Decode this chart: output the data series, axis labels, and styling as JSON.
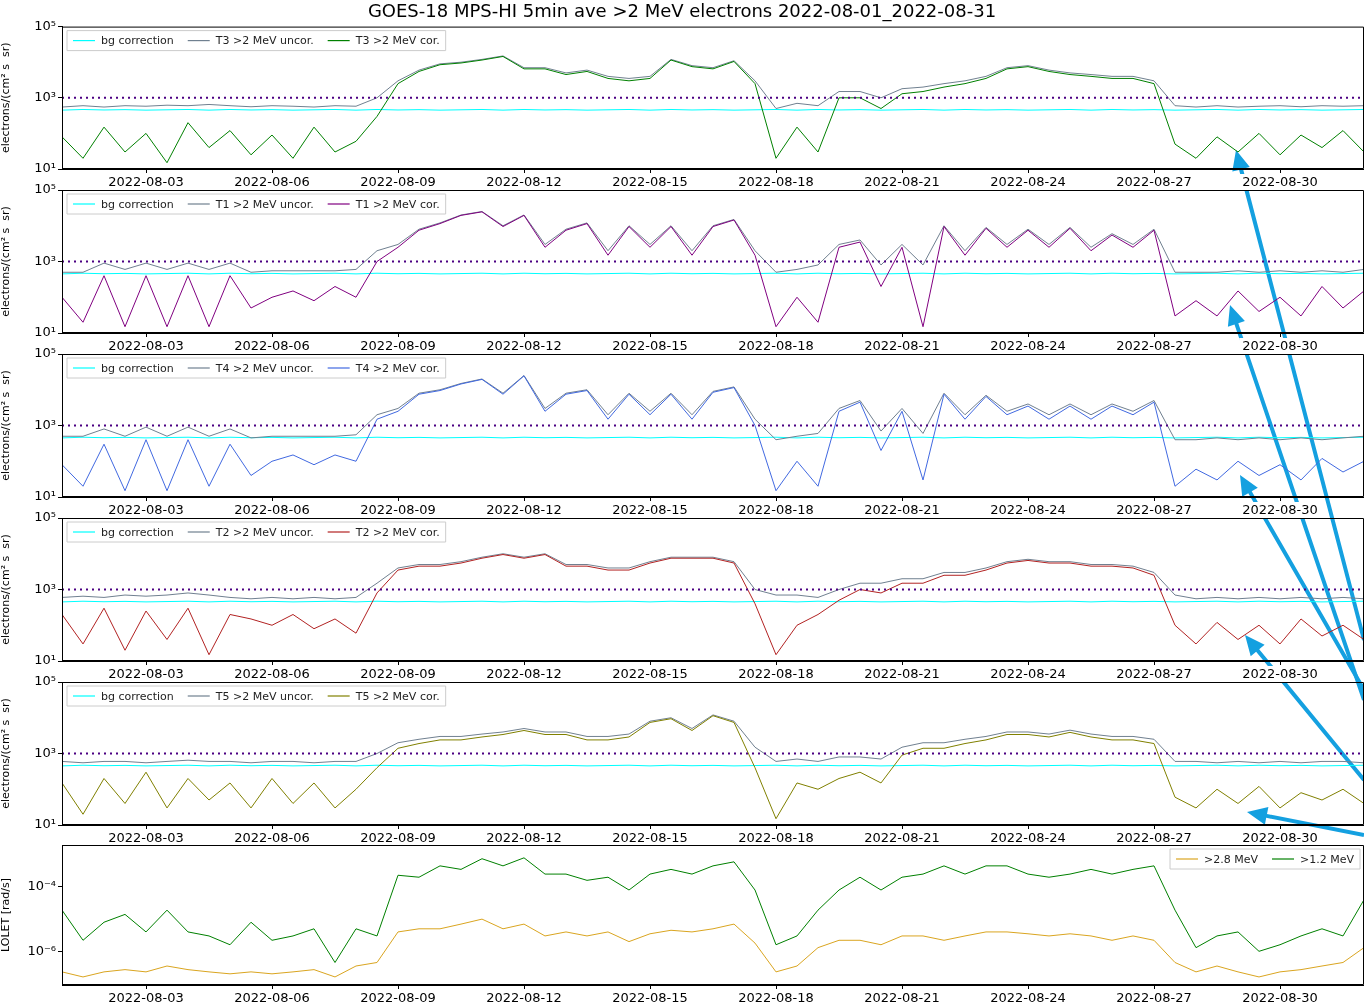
{
  "chart_data": [
    {
      "type": "line",
      "title": "GOES-18 MPS-HI 5min ave >2 MeV electrons 2022-08-01_2022-08-31",
      "ylabel": "electrons/(cm² s  sr)",
      "log": true,
      "legend": "top left",
      "x": [
        "2022-08-01T00:00",
        "2022-08-01T12:00",
        "2022-08-02T00:00",
        "2022-08-02T12:00",
        "2022-08-03T00:00",
        "2022-08-03T12:00",
        "2022-08-04T00:00",
        "2022-08-04T12:00",
        "2022-08-05T00:00",
        "2022-08-05T12:00",
        "2022-08-06T00:00",
        "2022-08-06T12:00",
        "2022-08-07T00:00",
        "2022-08-07T12:00",
        "2022-08-08T00:00",
        "2022-08-08T12:00",
        "2022-08-09T00:00",
        "2022-08-09T12:00",
        "2022-08-10T00:00",
        "2022-08-10T12:00",
        "2022-08-11T00:00",
        "2022-08-11T12:00",
        "2022-08-12T00:00",
        "2022-08-12T12:00",
        "2022-08-13T00:00",
        "2022-08-13T12:00",
        "2022-08-14T00:00",
        "2022-08-14T12:00",
        "2022-08-15T00:00",
        "2022-08-15T12:00",
        "2022-08-16T00:00",
        "2022-08-16T12:00",
        "2022-08-17T00:00",
        "2022-08-17T12:00",
        "2022-08-18T00:00",
        "2022-08-18T12:00",
        "2022-08-19T00:00",
        "2022-08-19T12:00",
        "2022-08-20T00:00",
        "2022-08-20T12:00",
        "2022-08-21T00:00",
        "2022-08-21T12:00",
        "2022-08-22T00:00",
        "2022-08-22T12:00",
        "2022-08-23T00:00",
        "2022-08-23T12:00",
        "2022-08-24T00:00",
        "2022-08-24T12:00",
        "2022-08-25T00:00",
        "2022-08-25T12:00",
        "2022-08-26T00:00",
        "2022-08-26T12:00",
        "2022-08-27T00:00",
        "2022-08-27T12:00",
        "2022-08-28T00:00",
        "2022-08-28T12:00",
        "2022-08-29T00:00",
        "2022-08-29T12:00",
        "2022-08-30T00:00",
        "2022-08-30T12:00",
        "2022-08-31T00:00",
        "2022-08-31T12:00",
        "2022-09-01T00:00"
      ],
      "xlim": [
        "2022-08-01",
        "2022-09-01"
      ],
      "xticks": [
        "2022-08-03",
        "2022-08-06",
        "2022-08-09",
        "2022-08-12",
        "2022-08-15",
        "2022-08-18",
        "2022-08-21",
        "2022-08-24",
        "2022-08-27",
        "2022-08-30"
      ],
      "ylim": [
        10,
        100000
      ],
      "yticks": [
        {
          "value": 10,
          "label": "10¹"
        },
        {
          "value": 1000,
          "label": "10³"
        },
        {
          "value": 100000,
          "label": "10⁵"
        }
      ],
      "ref_lines": [
        {
          "axis": "y",
          "value": 1000,
          "color": "#4b0082",
          "line_style": "dotted"
        }
      ],
      "series": [
        {
          "name": "bg correction",
          "color": "#00ffff",
          "values": [
            450,
            470,
            455,
            465,
            450,
            460,
            470,
            450,
            470,
            455,
            465,
            450,
            460,
            470,
            450,
            470,
            455,
            465,
            450,
            460,
            470,
            450,
            470,
            455,
            465,
            450,
            460,
            470,
            450,
            470,
            455,
            465,
            450,
            460,
            470,
            450,
            470,
            455,
            465,
            450,
            460,
            470,
            450,
            470,
            455,
            465,
            450,
            460,
            470,
            450,
            470,
            455,
            465,
            450,
            460,
            470,
            450,
            470,
            455,
            465,
            450,
            460,
            470
          ]
        },
        {
          "name": "T3 >2 MeV uncor.",
          "color": "#708090",
          "values": [
            550,
            600,
            550,
            600,
            580,
            620,
            600,
            650,
            600,
            560,
            600,
            580,
            550,
            600,
            580,
            1000,
            3000,
            6000,
            9000,
            10000,
            12000,
            15000,
            7000,
            7000,
            5000,
            6000,
            4000,
            3500,
            4000,
            12000,
            8000,
            7000,
            11000,
            3000,
            500,
            700,
            600,
            1500,
            1500,
            1000,
            1800,
            2000,
            2500,
            3000,
            4000,
            7000,
            8000,
            6000,
            5000,
            4500,
            4000,
            4000,
            3000,
            600,
            550,
            600,
            550,
            580,
            600,
            560,
            600,
            580,
            600
          ]
        },
        {
          "name": "T3 >2 MeV cor.",
          "color": "#008000",
          "values": [
            80,
            20,
            150,
            30,
            100,
            15,
            200,
            40,
            120,
            25,
            90,
            20,
            150,
            30,
            60,
            300,
            2500,
            5500,
            8500,
            9500,
            11500,
            14500,
            6500,
            6500,
            4500,
            5500,
            3500,
            3000,
            3500,
            11500,
            7500,
            6500,
            10500,
            2500,
            20,
            150,
            30,
            1000,
            1000,
            500,
            1300,
            1500,
            2000,
            2500,
            3500,
            6500,
            7500,
            5500,
            4500,
            4000,
            3500,
            3500,
            2500,
            50,
            20,
            80,
            30,
            100,
            25,
            90,
            40,
            120,
            30
          ]
        }
      ]
    },
    {
      "type": "line",
      "ylabel": "electrons/(cm² s  sr)",
      "log": true,
      "legend": "top left",
      "x": [
        "2022-08-01T00:00",
        "2022-08-01T12:00",
        "2022-08-02T00:00",
        "2022-08-02T12:00",
        "2022-08-03T00:00",
        "2022-08-03T12:00",
        "2022-08-04T00:00",
        "2022-08-04T12:00",
        "2022-08-05T00:00",
        "2022-08-05T12:00",
        "2022-08-06T00:00",
        "2022-08-06T12:00",
        "2022-08-07T00:00",
        "2022-08-07T12:00",
        "2022-08-08T00:00",
        "2022-08-08T12:00",
        "2022-08-09T00:00",
        "2022-08-09T12:00",
        "2022-08-10T00:00",
        "2022-08-10T12:00",
        "2022-08-11T00:00",
        "2022-08-11T12:00",
        "2022-08-12T00:00",
        "2022-08-12T12:00",
        "2022-08-13T00:00",
        "2022-08-13T12:00",
        "2022-08-14T00:00",
        "2022-08-14T12:00",
        "2022-08-15T00:00",
        "2022-08-15T12:00",
        "2022-08-16T00:00",
        "2022-08-16T12:00",
        "2022-08-17T00:00",
        "2022-08-17T12:00",
        "2022-08-18T00:00",
        "2022-08-18T12:00",
        "2022-08-19T00:00",
        "2022-08-19T12:00",
        "2022-08-20T00:00",
        "2022-08-20T12:00",
        "2022-08-21T00:00",
        "2022-08-21T12:00",
        "2022-08-22T00:00",
        "2022-08-22T12:00",
        "2022-08-23T00:00",
        "2022-08-23T12:00",
        "2022-08-24T00:00",
        "2022-08-24T12:00",
        "2022-08-25T00:00",
        "2022-08-25T12:00",
        "2022-08-26T00:00",
        "2022-08-26T12:00",
        "2022-08-27T00:00",
        "2022-08-27T12:00",
        "2022-08-28T00:00",
        "2022-08-28T12:00",
        "2022-08-29T00:00",
        "2022-08-29T12:00",
        "2022-08-30T00:00",
        "2022-08-30T12:00",
        "2022-08-31T00:00",
        "2022-08-31T12:00",
        "2022-09-01T00:00"
      ],
      "xlim": [
        "2022-08-01",
        "2022-09-01"
      ],
      "xticks": [
        "2022-08-03",
        "2022-08-06",
        "2022-08-09",
        "2022-08-12",
        "2022-08-15",
        "2022-08-18",
        "2022-08-21",
        "2022-08-24",
        "2022-08-27",
        "2022-08-30"
      ],
      "ylim": [
        10,
        100000
      ],
      "yticks": [
        {
          "value": 10,
          "label": "10¹"
        },
        {
          "value": 1000,
          "label": "10³"
        },
        {
          "value": 100000,
          "label": "10⁵"
        }
      ],
      "ref_lines": [
        {
          "axis": "y",
          "value": 1000,
          "color": "#4b0082",
          "line_style": "dotted"
        }
      ],
      "series": [
        {
          "name": "bg correction",
          "color": "#00ffff",
          "values": [
            450,
            470,
            455,
            465,
            450,
            460,
            470,
            450,
            470,
            455,
            465,
            450,
            460,
            470,
            450,
            470,
            455,
            465,
            450,
            460,
            470,
            450,
            470,
            455,
            465,
            450,
            460,
            470,
            450,
            470,
            455,
            465,
            450,
            460,
            470,
            450,
            470,
            455,
            465,
            450,
            460,
            470,
            450,
            470,
            455,
            465,
            450,
            460,
            470,
            450,
            470,
            455,
            465,
            450,
            460,
            470,
            450,
            470,
            455,
            465,
            450,
            460,
            470
          ]
        },
        {
          "name": "T1 >2 MeV uncor.",
          "color": "#708090",
          "values": [
            500,
            500,
            900,
            600,
            900,
            600,
            900,
            600,
            900,
            500,
            550,
            550,
            550,
            550,
            600,
            2000,
            3000,
            8000,
            12000,
            20000,
            25000,
            10000,
            20000,
            3000,
            8000,
            12000,
            2000,
            10000,
            3000,
            10000,
            2000,
            10000,
            15000,
            2000,
            500,
            600,
            800,
            3000,
            4000,
            800,
            3000,
            800,
            10000,
            2000,
            9000,
            3000,
            8000,
            3000,
            9000,
            2500,
            6000,
            3000,
            8000,
            500,
            500,
            500,
            550,
            500,
            550,
            500,
            550,
            500,
            600
          ]
        },
        {
          "name": "T1 >2 MeV cor.",
          "color": "#800080",
          "values": [
            100,
            20,
            400,
            15,
            400,
            15,
            400,
            15,
            400,
            50,
            100,
            150,
            80,
            200,
            100,
            1000,
            2500,
            7500,
            11500,
            19500,
            24500,
            9500,
            19500,
            2500,
            7500,
            11500,
            1500,
            9500,
            2500,
            9500,
            1500,
            9500,
            14500,
            1500,
            15,
            100,
            20,
            2500,
            3500,
            200,
            2500,
            15,
            9500,
            1500,
            8500,
            2500,
            7500,
            2500,
            8500,
            2000,
            5500,
            2500,
            7500,
            30,
            80,
            30,
            150,
            40,
            100,
            30,
            200,
            50,
            150
          ]
        }
      ]
    },
    {
      "type": "line",
      "ylabel": "electrons/(cm² s  sr)",
      "log": true,
      "legend": "top left",
      "x": [
        "2022-08-01T00:00",
        "2022-08-01T12:00",
        "2022-08-02T00:00",
        "2022-08-02T12:00",
        "2022-08-03T00:00",
        "2022-08-03T12:00",
        "2022-08-04T00:00",
        "2022-08-04T12:00",
        "2022-08-05T00:00",
        "2022-08-05T12:00",
        "2022-08-06T00:00",
        "2022-08-06T12:00",
        "2022-08-07T00:00",
        "2022-08-07T12:00",
        "2022-08-08T00:00",
        "2022-08-08T12:00",
        "2022-08-09T00:00",
        "2022-08-09T12:00",
        "2022-08-10T00:00",
        "2022-08-10T12:00",
        "2022-08-11T00:00",
        "2022-08-11T12:00",
        "2022-08-12T00:00",
        "2022-08-12T12:00",
        "2022-08-13T00:00",
        "2022-08-13T12:00",
        "2022-08-14T00:00",
        "2022-08-14T12:00",
        "2022-08-15T00:00",
        "2022-08-15T12:00",
        "2022-08-16T00:00",
        "2022-08-16T12:00",
        "2022-08-17T00:00",
        "2022-08-17T12:00",
        "2022-08-18T00:00",
        "2022-08-18T12:00",
        "2022-08-19T00:00",
        "2022-08-19T12:00",
        "2022-08-20T00:00",
        "2022-08-20T12:00",
        "2022-08-21T00:00",
        "2022-08-21T12:00",
        "2022-08-22T00:00",
        "2022-08-22T12:00",
        "2022-08-23T00:00",
        "2022-08-23T12:00",
        "2022-08-24T00:00",
        "2022-08-24T12:00",
        "2022-08-25T00:00",
        "2022-08-25T12:00",
        "2022-08-26T00:00",
        "2022-08-26T12:00",
        "2022-08-27T00:00",
        "2022-08-27T12:00",
        "2022-08-28T00:00",
        "2022-08-28T12:00",
        "2022-08-29T00:00",
        "2022-08-29T12:00",
        "2022-08-30T00:00",
        "2022-08-30T12:00",
        "2022-08-31T00:00",
        "2022-08-31T12:00",
        "2022-09-01T00:00"
      ],
      "xlim": [
        "2022-08-01",
        "2022-09-01"
      ],
      "xticks": [
        "2022-08-03",
        "2022-08-06",
        "2022-08-09",
        "2022-08-12",
        "2022-08-15",
        "2022-08-18",
        "2022-08-21",
        "2022-08-24",
        "2022-08-27",
        "2022-08-30"
      ],
      "ylim": [
        10,
        100000
      ],
      "yticks": [
        {
          "value": 10,
          "label": "10¹"
        },
        {
          "value": 1000,
          "label": "10³"
        },
        {
          "value": 100000,
          "label": "10⁵"
        }
      ],
      "ref_lines": [
        {
          "axis": "y",
          "value": 1000,
          "color": "#4b0082",
          "line_style": "dotted"
        }
      ],
      "series": [
        {
          "name": "bg correction",
          "color": "#00ffff",
          "values": [
            450,
            470,
            455,
            465,
            450,
            460,
            470,
            450,
            470,
            455,
            465,
            450,
            460,
            470,
            450,
            470,
            455,
            465,
            450,
            460,
            470,
            450,
            470,
            455,
            465,
            450,
            460,
            470,
            450,
            470,
            455,
            465,
            450,
            460,
            470,
            450,
            470,
            455,
            465,
            450,
            460,
            470,
            450,
            470,
            455,
            465,
            450,
            460,
            470,
            450,
            470,
            455,
            465,
            450,
            460,
            470,
            450,
            470,
            455,
            465,
            450,
            460,
            470
          ]
        },
        {
          "name": "T4 >2 MeV uncor.",
          "color": "#708090",
          "values": [
            500,
            500,
            800,
            500,
            900,
            500,
            900,
            500,
            800,
            450,
            500,
            500,
            500,
            500,
            550,
            2000,
            3000,
            8000,
            10000,
            15000,
            20000,
            8000,
            25000,
            3000,
            8000,
            10000,
            2000,
            8000,
            2500,
            8000,
            2000,
            9000,
            12000,
            1500,
            400,
            500,
            600,
            3000,
            5000,
            700,
            3000,
            600,
            8000,
            2000,
            7000,
            2500,
            4000,
            2000,
            4000,
            2000,
            4000,
            2500,
            5000,
            400,
            400,
            450,
            400,
            450,
            400,
            450,
            400,
            450,
            500
          ]
        },
        {
          "name": "T4 >2 MeV cor.",
          "color": "#4169e1",
          "values": [
            80,
            20,
            300,
            15,
            400,
            15,
            400,
            20,
            300,
            40,
            100,
            150,
            80,
            150,
            100,
            1500,
            2500,
            7500,
            9500,
            14500,
            19500,
            7500,
            24500,
            2500,
            7500,
            9500,
            1500,
            7500,
            2000,
            7500,
            1500,
            8500,
            11500,
            1000,
            15,
            100,
            20,
            2500,
            4500,
            200,
            2500,
            30,
            7500,
            1500,
            6500,
            2000,
            3500,
            1500,
            3500,
            1500,
            3500,
            2000,
            4500,
            20,
            60,
            30,
            100,
            40,
            80,
            30,
            120,
            50,
            100
          ]
        }
      ]
    },
    {
      "type": "line",
      "ylabel": "electrons/(cm² s  sr)",
      "log": true,
      "legend": "top left",
      "x": [
        "2022-08-01T00:00",
        "2022-08-01T12:00",
        "2022-08-02T00:00",
        "2022-08-02T12:00",
        "2022-08-03T00:00",
        "2022-08-03T12:00",
        "2022-08-04T00:00",
        "2022-08-04T12:00",
        "2022-08-05T00:00",
        "2022-08-05T12:00",
        "2022-08-06T00:00",
        "2022-08-06T12:00",
        "2022-08-07T00:00",
        "2022-08-07T12:00",
        "2022-08-08T00:00",
        "2022-08-08T12:00",
        "2022-08-09T00:00",
        "2022-08-09T12:00",
        "2022-08-10T00:00",
        "2022-08-10T12:00",
        "2022-08-11T00:00",
        "2022-08-11T12:00",
        "2022-08-12T00:00",
        "2022-08-12T12:00",
        "2022-08-13T00:00",
        "2022-08-13T12:00",
        "2022-08-14T00:00",
        "2022-08-14T12:00",
        "2022-08-15T00:00",
        "2022-08-15T12:00",
        "2022-08-16T00:00",
        "2022-08-16T12:00",
        "2022-08-17T00:00",
        "2022-08-17T12:00",
        "2022-08-18T00:00",
        "2022-08-18T12:00",
        "2022-08-19T00:00",
        "2022-08-19T12:00",
        "2022-08-20T00:00",
        "2022-08-20T12:00",
        "2022-08-21T00:00",
        "2022-08-21T12:00",
        "2022-08-22T00:00",
        "2022-08-22T12:00",
        "2022-08-23T00:00",
        "2022-08-23T12:00",
        "2022-08-24T00:00",
        "2022-08-24T12:00",
        "2022-08-25T00:00",
        "2022-08-25T12:00",
        "2022-08-26T00:00",
        "2022-08-26T12:00",
        "2022-08-27T00:00",
        "2022-08-27T12:00",
        "2022-08-28T00:00",
        "2022-08-28T12:00",
        "2022-08-29T00:00",
        "2022-08-29T12:00",
        "2022-08-30T00:00",
        "2022-08-30T12:00",
        "2022-08-31T00:00",
        "2022-08-31T12:00",
        "2022-09-01T00:00"
      ],
      "xlim": [
        "2022-08-01",
        "2022-09-01"
      ],
      "xticks": [
        "2022-08-03",
        "2022-08-06",
        "2022-08-09",
        "2022-08-12",
        "2022-08-15",
        "2022-08-18",
        "2022-08-21",
        "2022-08-24",
        "2022-08-27",
        "2022-08-30"
      ],
      "ylim": [
        10,
        100000
      ],
      "yticks": [
        {
          "value": 10,
          "label": "10¹"
        },
        {
          "value": 1000,
          "label": "10³"
        },
        {
          "value": 100000,
          "label": "10⁵"
        }
      ],
      "ref_lines": [
        {
          "axis": "y",
          "value": 1000,
          "color": "#4b0082",
          "line_style": "dotted"
        }
      ],
      "series": [
        {
          "name": "bg correction",
          "color": "#00ffff",
          "values": [
            450,
            470,
            455,
            465,
            450,
            460,
            470,
            450,
            470,
            455,
            465,
            450,
            460,
            470,
            450,
            470,
            455,
            465,
            450,
            460,
            470,
            450,
            470,
            455,
            465,
            450,
            460,
            470,
            450,
            470,
            455,
            465,
            450,
            460,
            470,
            450,
            470,
            455,
            465,
            450,
            460,
            470,
            450,
            470,
            455,
            465,
            450,
            460,
            470,
            450,
            470,
            455,
            465,
            450,
            460,
            470,
            450,
            470,
            455,
            465,
            450,
            460,
            470
          ]
        },
        {
          "name": "T2 >2 MeV uncor.",
          "color": "#708090",
          "values": [
            600,
            650,
            600,
            700,
            650,
            700,
            800,
            700,
            600,
            550,
            600,
            550,
            600,
            550,
            600,
            1500,
            4000,
            5000,
            5000,
            6000,
            8000,
            10000,
            8000,
            10000,
            5000,
            5000,
            4000,
            4000,
            6000,
            8000,
            8000,
            8000,
            6000,
            1000,
            700,
            700,
            600,
            1000,
            1500,
            1500,
            2000,
            2000,
            3000,
            3000,
            4000,
            6000,
            7000,
            6000,
            6000,
            5000,
            5000,
            4500,
            3000,
            700,
            550,
            600,
            550,
            600,
            550,
            600,
            550,
            600,
            550
          ]
        },
        {
          "name": "T2 >2 MeV cor.",
          "color": "#b22222",
          "values": [
            200,
            30,
            300,
            20,
            250,
            40,
            300,
            15,
            200,
            150,
            100,
            200,
            80,
            150,
            60,
            800,
            3500,
            4500,
            4500,
            5500,
            7500,
            9500,
            7500,
            9500,
            4500,
            4500,
            3500,
            3500,
            5500,
            7500,
            7500,
            7500,
            5500,
            400,
            15,
            100,
            200,
            500,
            1000,
            800,
            1500,
            1500,
            2500,
            2500,
            3500,
            5500,
            6500,
            5500,
            5500,
            4500,
            4500,
            4000,
            2500,
            100,
            30,
            120,
            40,
            100,
            30,
            150,
            50,
            100,
            40
          ]
        }
      ]
    },
    {
      "type": "line",
      "ylabel": "electrons/(cm² s  sr)",
      "log": true,
      "legend": "top left",
      "x": [
        "2022-08-01T00:00",
        "2022-08-01T12:00",
        "2022-08-02T00:00",
        "2022-08-02T12:00",
        "2022-08-03T00:00",
        "2022-08-03T12:00",
        "2022-08-04T00:00",
        "2022-08-04T12:00",
        "2022-08-05T00:00",
        "2022-08-05T12:00",
        "2022-08-06T00:00",
        "2022-08-06T12:00",
        "2022-08-07T00:00",
        "2022-08-07T12:00",
        "2022-08-08T00:00",
        "2022-08-08T12:00",
        "2022-08-09T00:00",
        "2022-08-09T12:00",
        "2022-08-10T00:00",
        "2022-08-10T12:00",
        "2022-08-11T00:00",
        "2022-08-11T12:00",
        "2022-08-12T00:00",
        "2022-08-12T12:00",
        "2022-08-13T00:00",
        "2022-08-13T12:00",
        "2022-08-14T00:00",
        "2022-08-14T12:00",
        "2022-08-15T00:00",
        "2022-08-15T12:00",
        "2022-08-16T00:00",
        "2022-08-16T12:00",
        "2022-08-17T00:00",
        "2022-08-17T12:00",
        "2022-08-18T00:00",
        "2022-08-18T12:00",
        "2022-08-19T00:00",
        "2022-08-19T12:00",
        "2022-08-20T00:00",
        "2022-08-20T12:00",
        "2022-08-21T00:00",
        "2022-08-21T12:00",
        "2022-08-22T00:00",
        "2022-08-22T12:00",
        "2022-08-23T00:00",
        "2022-08-23T12:00",
        "2022-08-24T00:00",
        "2022-08-24T12:00",
        "2022-08-25T00:00",
        "2022-08-25T12:00",
        "2022-08-26T00:00",
        "2022-08-26T12:00",
        "2022-08-27T00:00",
        "2022-08-27T12:00",
        "2022-08-28T00:00",
        "2022-08-28T12:00",
        "2022-08-29T00:00",
        "2022-08-29T12:00",
        "2022-08-30T00:00",
        "2022-08-30T12:00",
        "2022-08-31T00:00",
        "2022-08-31T12:00",
        "2022-09-01T00:00"
      ],
      "xlim": [
        "2022-08-01",
        "2022-09-01"
      ],
      "xticks": [
        "2022-08-03",
        "2022-08-06",
        "2022-08-09",
        "2022-08-12",
        "2022-08-15",
        "2022-08-18",
        "2022-08-21",
        "2022-08-24",
        "2022-08-27",
        "2022-08-30"
      ],
      "ylim": [
        10,
        100000
      ],
      "yticks": [
        {
          "value": 10,
          "label": "10¹"
        },
        {
          "value": 1000,
          "label": "10³"
        },
        {
          "value": 100000,
          "label": "10⁵"
        }
      ],
      "ref_lines": [
        {
          "axis": "y",
          "value": 1000,
          "color": "#4b0082",
          "line_style": "dotted"
        }
      ],
      "series": [
        {
          "name": "bg correction",
          "color": "#00ffff",
          "values": [
            450,
            470,
            455,
            465,
            450,
            460,
            470,
            450,
            470,
            455,
            465,
            450,
            460,
            470,
            450,
            470,
            455,
            465,
            450,
            460,
            470,
            450,
            470,
            455,
            465,
            450,
            460,
            470,
            450,
            470,
            455,
            465,
            450,
            460,
            470,
            450,
            470,
            455,
            465,
            450,
            460,
            470,
            450,
            470,
            455,
            465,
            450,
            460,
            470,
            450,
            470,
            455,
            465,
            450,
            460,
            470,
            450,
            470,
            455,
            465,
            450,
            460,
            470
          ]
        },
        {
          "name": "T5 >2 MeV uncor.",
          "color": "#708090",
          "values": [
            600,
            550,
            600,
            600,
            550,
            600,
            650,
            600,
            600,
            550,
            600,
            600,
            550,
            600,
            600,
            1000,
            2000,
            2500,
            3000,
            3000,
            3500,
            4000,
            5000,
            4000,
            4000,
            3000,
            3000,
            3500,
            8000,
            10000,
            5000,
            12000,
            8000,
            1500,
            600,
            700,
            600,
            800,
            800,
            700,
            1500,
            2000,
            2000,
            2500,
            3000,
            4000,
            4000,
            3500,
            4500,
            3500,
            3000,
            3000,
            2500,
            600,
            600,
            550,
            600,
            550,
            600,
            550,
            600,
            600,
            550
          ]
        },
        {
          "name": "T5 >2 MeV cor.",
          "color": "#808000",
          "values": [
            150,
            20,
            200,
            40,
            300,
            30,
            200,
            50,
            150,
            30,
            200,
            40,
            150,
            30,
            100,
            400,
            1400,
            1900,
            2400,
            2400,
            2900,
            3400,
            4400,
            3400,
            3400,
            2400,
            2400,
            2900,
            7400,
            9400,
            4400,
            11400,
            7400,
            400,
            15,
            150,
            100,
            200,
            300,
            150,
            900,
            1400,
            1400,
            1900,
            2400,
            3400,
            3400,
            2900,
            3900,
            2900,
            2400,
            2400,
            1900,
            60,
            30,
            100,
            40,
            120,
            30,
            80,
            50,
            100,
            40
          ]
        }
      ]
    },
    {
      "type": "line",
      "ylabel": "LOLET [rad/s]",
      "log": true,
      "legend": "top right",
      "x": [
        "2022-08-01T00:00",
        "2022-08-01T12:00",
        "2022-08-02T00:00",
        "2022-08-02T12:00",
        "2022-08-03T00:00",
        "2022-08-03T12:00",
        "2022-08-04T00:00",
        "2022-08-04T12:00",
        "2022-08-05T00:00",
        "2022-08-05T12:00",
        "2022-08-06T00:00",
        "2022-08-06T12:00",
        "2022-08-07T00:00",
        "2022-08-07T12:00",
        "2022-08-08T00:00",
        "2022-08-08T12:00",
        "2022-08-09T00:00",
        "2022-08-09T12:00",
        "2022-08-10T00:00",
        "2022-08-10T12:00",
        "2022-08-11T00:00",
        "2022-08-11T12:00",
        "2022-08-12T00:00",
        "2022-08-12T12:00",
        "2022-08-13T00:00",
        "2022-08-13T12:00",
        "2022-08-14T00:00",
        "2022-08-14T12:00",
        "2022-08-15T00:00",
        "2022-08-15T12:00",
        "2022-08-16T00:00",
        "2022-08-16T12:00",
        "2022-08-17T00:00",
        "2022-08-17T12:00",
        "2022-08-18T00:00",
        "2022-08-18T12:00",
        "2022-08-19T00:00",
        "2022-08-19T12:00",
        "2022-08-20T00:00",
        "2022-08-20T12:00",
        "2022-08-21T00:00",
        "2022-08-21T12:00",
        "2022-08-22T00:00",
        "2022-08-22T12:00",
        "2022-08-23T00:00",
        "2022-08-23T12:00",
        "2022-08-24T00:00",
        "2022-08-24T12:00",
        "2022-08-25T00:00",
        "2022-08-25T12:00",
        "2022-08-26T00:00",
        "2022-08-26T12:00",
        "2022-08-27T00:00",
        "2022-08-27T12:00",
        "2022-08-28T00:00",
        "2022-08-28T12:00",
        "2022-08-29T00:00",
        "2022-08-29T12:00",
        "2022-08-30T00:00",
        "2022-08-30T12:00",
        "2022-08-31T00:00",
        "2022-08-31T12:00",
        "2022-09-01T00:00"
      ],
      "xlim": [
        "2022-08-01",
        "2022-09-01"
      ],
      "xticks": [
        "2022-08-03",
        "2022-08-06",
        "2022-08-09",
        "2022-08-12",
        "2022-08-15",
        "2022-08-18",
        "2022-08-21",
        "2022-08-24",
        "2022-08-27",
        "2022-08-30"
      ],
      "ylim": [
        9e-08,
        0.002
      ],
      "yticks": [
        {
          "value": 0.0001,
          "label": "10⁻⁴"
        },
        {
          "value": 1e-06,
          "label": "10⁻⁶"
        }
      ],
      "series": [
        {
          "name": ">2.8 MeV",
          "color": "#daa520",
          "values": [
            2.3e-07,
            1.6e-07,
            2.3e-07,
            2.7e-07,
            2.3e-07,
            3.5e-07,
            2.7e-07,
            2.3e-07,
            2e-07,
            2.3e-07,
            2e-07,
            2.3e-07,
            2.7e-07,
            1.6e-07,
            3.5e-07,
            4.5e-07,
            4e-06,
            5e-06,
            5e-06,
            7e-06,
            1e-05,
            5e-06,
            7e-06,
            3e-06,
            4e-06,
            3e-06,
            4e-06,
            2e-06,
            3.5e-06,
            4.5e-06,
            4e-06,
            5e-06,
            7e-06,
            1.8e-06,
            2.3e-07,
            3.5e-07,
            1.3e-06,
            2.2e-06,
            2.2e-06,
            1.6e-06,
            3e-06,
            3e-06,
            2.2e-06,
            3e-06,
            4e-06,
            4e-06,
            3.5e-06,
            3e-06,
            3.5e-06,
            3e-06,
            2.2e-06,
            3e-06,
            2.2e-06,
            4.5e-07,
            2.3e-07,
            3.5e-07,
            2.3e-07,
            1.6e-07,
            2.3e-07,
            2.7e-07,
            3.5e-07,
            4.5e-07,
            1.3e-06
          ]
        },
        {
          "name": ">1.2 MeV",
          "color": "#008000",
          "values": [
            1.9e-05,
            2.2e-06,
            8e-06,
            1.4e-05,
            4e-06,
            1.9e-05,
            4e-06,
            3e-06,
            1.6e-06,
            8e-06,
            2.2e-06,
            3e-06,
            5e-06,
            4.5e-07,
            5e-06,
            3e-06,
            0.00023,
            0.0002,
            0.00045,
            0.00035,
            0.00075,
            0.00045,
            0.0008,
            0.00025,
            0.00025,
            0.00016,
            0.0002,
            8e-05,
            0.00025,
            0.00035,
            0.00025,
            0.00045,
            0.0006,
            8e-05,
            1.6e-06,
            3e-06,
            1.9e-05,
            8e-05,
            0.0002,
            8e-05,
            0.0002,
            0.00025,
            0.00045,
            0.00025,
            0.00045,
            0.00045,
            0.00025,
            0.0002,
            0.00025,
            0.00035,
            0.00025,
            0.00035,
            0.00045,
            1.9e-05,
            1.3e-06,
            3e-06,
            4e-06,
            1e-06,
            1.6e-06,
            3e-06,
            5e-06,
            3e-06,
            4e-05
          ]
        }
      ]
    }
  ]
}
